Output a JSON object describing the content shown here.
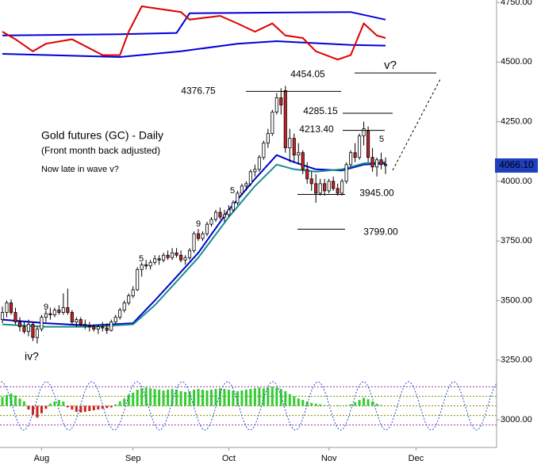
{
  "chart_data": {
    "type": "candlestick",
    "title": "Gold futures (GC) - Daily",
    "subtitle": "(Front month back adjusted)",
    "note": "Now late in wave v?",
    "x": [
      0,
      1,
      2,
      3,
      4,
      5,
      6,
      7,
      8,
      9,
      10,
      11,
      12,
      13,
      14,
      15,
      16,
      17,
      18,
      19,
      20,
      21,
      22,
      23,
      24,
      25,
      26,
      27,
      28,
      29,
      30,
      31,
      32,
      33,
      34,
      35,
      36,
      37,
      38,
      39,
      40,
      41,
      42,
      43,
      44,
      45,
      46,
      47,
      48,
      49,
      50,
      51,
      52,
      53,
      54,
      55,
      56,
      57,
      58,
      59,
      60,
      61,
      62,
      63,
      64,
      65,
      66,
      67,
      68,
      69,
      70,
      71,
      72,
      73,
      74,
      75,
      76,
      77,
      78,
      79,
      80,
      81,
      82,
      83,
      84,
      85,
      86,
      87,
      88
    ],
    "open": [
      3420,
      3450,
      3490,
      3450,
      3410,
      3390,
      3370,
      3400,
      3345,
      3380,
      3430,
      3445,
      3440,
      3460,
      3450,
      3470,
      3450,
      3410,
      3420,
      3400,
      3395,
      3390,
      3380,
      3390,
      3385,
      3375,
      3410,
      3430,
      3460,
      3490,
      3520,
      3545,
      3630,
      3650,
      3645,
      3660,
      3675,
      3670,
      3690,
      3680,
      3700,
      3690,
      3670,
      3680,
      3710,
      3780,
      3760,
      3780,
      3820,
      3840,
      3870,
      3850,
      3860,
      3880,
      3910,
      3950,
      3980,
      3990,
      4040,
      4050,
      4100,
      4160,
      4200,
      4290,
      4350,
      4380,
      4140,
      4180,
      4110,
      4120,
      4050,
      4010,
      3990,
      3950,
      3990,
      3960,
      4000,
      3970,
      3950,
      4000,
      4070,
      4120,
      4100,
      4190,
      4210,
      4100,
      4060,
      4090,
      4070
    ],
    "high": [
      3475,
      3500,
      3505,
      3470,
      3430,
      3410,
      3420,
      3410,
      3390,
      3440,
      3460,
      3470,
      3470,
      3480,
      3530,
      3550,
      3460,
      3430,
      3430,
      3420,
      3410,
      3400,
      3400,
      3410,
      3405,
      3420,
      3440,
      3470,
      3500,
      3530,
      3560,
      3640,
      3660,
      3670,
      3670,
      3690,
      3690,
      3700,
      3710,
      3720,
      3720,
      3710,
      3690,
      3720,
      3790,
      3800,
      3790,
      3830,
      3850,
      3880,
      3890,
      3880,
      3900,
      3920,
      3960,
      3990,
      4000,
      4050,
      4070,
      4110,
      4170,
      4220,
      4300,
      4370,
      4390,
      4400,
      4220,
      4200,
      4160,
      4130,
      4080,
      4040,
      4030,
      4010,
      4010,
      4010,
      4020,
      3990,
      4010,
      4080,
      4130,
      4160,
      4200,
      4250,
      4230,
      4140,
      4100,
      4120,
      4100
    ],
    "low": [
      3405,
      3430,
      3440,
      3400,
      3370,
      3360,
      3350,
      3330,
      3320,
      3370,
      3410,
      3420,
      3430,
      3440,
      3440,
      3440,
      3400,
      3390,
      3395,
      3380,
      3370,
      3370,
      3360,
      3370,
      3360,
      3370,
      3400,
      3420,
      3450,
      3480,
      3510,
      3540,
      3600,
      3630,
      3630,
      3650,
      3650,
      3660,
      3670,
      3670,
      3680,
      3660,
      3650,
      3670,
      3700,
      3750,
      3750,
      3770,
      3810,
      3830,
      3840,
      3830,
      3850,
      3870,
      3900,
      3940,
      3960,
      3980,
      4020,
      4040,
      4090,
      4140,
      4190,
      4280,
      4280,
      4120,
      4080,
      4080,
      4070,
      4030,
      3990,
      3960,
      3910,
      3940,
      3940,
      3950,
      3960,
      3940,
      3940,
      3990,
      4060,
      4080,
      4090,
      4150,
      4080,
      4040,
      4020,
      4050,
      4030
    ],
    "close": [
      3450,
      3490,
      3450,
      3410,
      3390,
      3370,
      3400,
      3345,
      3380,
      3430,
      3445,
      3440,
      3460,
      3450,
      3470,
      3450,
      3410,
      3420,
      3400,
      3395,
      3390,
      3380,
      3390,
      3385,
      3375,
      3410,
      3430,
      3460,
      3490,
      3520,
      3545,
      3630,
      3650,
      3645,
      3660,
      3675,
      3670,
      3690,
      3680,
      3700,
      3690,
      3670,
      3680,
      3710,
      3780,
      3760,
      3780,
      3820,
      3840,
      3870,
      3850,
      3860,
      3880,
      3910,
      3950,
      3980,
      3990,
      4040,
      4050,
      4100,
      4160,
      4200,
      4290,
      4350,
      4320,
      4140,
      4180,
      4110,
      4120,
      4050,
      4010,
      3990,
      3950,
      3990,
      3960,
      4000,
      3970,
      3950,
      4000,
      4070,
      4120,
      4100,
      4190,
      4220,
      4100,
      4060,
      4090,
      4070,
      4066.1
    ],
    "last_label": "4066.10",
    "up_color": "#ffffff",
    "down_color": "#cc2222",
    "xlim": [
      -0.55,
      113.5
    ],
    "ylim": [
      2884,
      4760
    ],
    "xticks": [
      {
        "value": 9,
        "label": "Aug"
      },
      {
        "value": 30,
        "label": "Sep"
      },
      {
        "value": 52,
        "label": "Oct"
      },
      {
        "value": 75,
        "label": "Nov"
      },
      {
        "value": 95,
        "label": "Dec"
      }
    ],
    "yticks": [
      {
        "value": 3000,
        "label": "3000.00"
      },
      {
        "value": 3250,
        "label": "3250.00"
      },
      {
        "value": 3500,
        "label": "3500.00"
      },
      {
        "value": 3750,
        "label": "3750.00"
      },
      {
        "value": 4000,
        "label": "4000.00"
      },
      {
        "value": 4250,
        "label": "4250.00"
      },
      {
        "value": 4500,
        "label": "4500.00"
      },
      {
        "value": 4750,
        "label": "4750.00"
      }
    ],
    "moving_averages": [
      {
        "color": "#0000cc",
        "x": [
          0,
          10,
          20,
          30,
          35,
          40,
          45,
          52,
          58,
          63,
          67,
          72,
          78,
          83,
          88
        ],
        "values": [
          3420,
          3405,
          3395,
          3405,
          3500,
          3600,
          3700,
          3880,
          4010,
          4110,
          4080,
          4050,
          4045,
          4070,
          4075
        ]
      },
      {
        "color": "#1a8c8c",
        "x": [
          0,
          10,
          20,
          30,
          35,
          40,
          45,
          52,
          58,
          63,
          67,
          72,
          78,
          83,
          88
        ],
        "values": [
          3400,
          3390,
          3390,
          3400,
          3480,
          3580,
          3680,
          3850,
          3980,
          4070,
          4050,
          4040,
          4050,
          4075,
          4080
        ]
      }
    ],
    "levels": [
      {
        "value": 4454.05,
        "label": "4454.05"
      },
      {
        "value": 4376.75,
        "label": "4376.75"
      },
      {
        "value": 4285.15,
        "label": "4285.15"
      },
      {
        "value": 4213.4,
        "label": "4213.40"
      },
      {
        "value": 3945.0,
        "label": "3945.00"
      },
      {
        "value": 3799.0,
        "label": "3799.00"
      }
    ],
    "wave_labels": [
      "iv?",
      "v?",
      "9",
      "5",
      "9",
      "5",
      "5"
    ],
    "wave_label_colors": [
      "#000000",
      "#000000",
      "#dd0000",
      "#888800",
      "#dd0000",
      "#888800",
      "#dd0000"
    ],
    "indicator": {
      "ylim": [
        0,
        100
      ],
      "series": [
        {
          "color": "#0000dd",
          "x": [
            0,
            27,
            40,
            43,
            80,
            88
          ],
          "values": [
            44,
            46,
            48,
            79,
            81,
            69
          ]
        },
        {
          "color": "#0000dd",
          "x": [
            0,
            27,
            41,
            54,
            63,
            80,
            88
          ],
          "values": [
            15,
            10,
            19,
            31,
            35,
            29,
            28
          ]
        },
        {
          "color": "#dd0000",
          "x": [
            0,
            3,
            7,
            10,
            16,
            23,
            27,
            29,
            32,
            41,
            43,
            50,
            54,
            58,
            62,
            65,
            69,
            72,
            77,
            80,
            83,
            86,
            88
          ],
          "values": [
            50,
            38,
            19,
            31,
            38,
            13,
            13,
            50,
            90,
            81,
            69,
            75,
            63,
            50,
            63,
            44,
            40,
            19,
            6,
            13,
            63,
            44,
            40
          ]
        }
      ]
    },
    "oscillator": {
      "ylim": [
        -35,
        35
      ],
      "levels": [
        26,
        13,
        0,
        -13,
        -26
      ],
      "level_colors": [
        "#993399",
        "#888800",
        "#888800",
        "#888800",
        "#993399"
      ],
      "up_color": "#33cc33",
      "down_color": "#cc2222",
      "values": [
        12,
        15,
        17,
        14,
        10,
        6,
        -5,
        -12,
        -16,
        -10,
        -4,
        3,
        6,
        8,
        6,
        -2,
        -5,
        -8,
        -9,
        -8,
        -7,
        -6,
        -5,
        -4,
        -3,
        -2,
        2,
        6,
        10,
        15,
        18,
        22,
        24,
        25,
        24,
        23,
        22,
        21,
        22,
        23,
        22,
        20,
        19,
        20,
        22,
        23,
        22,
        21,
        22,
        23,
        24,
        23,
        22,
        21,
        20,
        21,
        22,
        23,
        24,
        25,
        24,
        25,
        26,
        25,
        23,
        20,
        16,
        13,
        10,
        8,
        6,
        4,
        3,
        2,
        1,
        0,
        0,
        1,
        0,
        1,
        2,
        5,
        8,
        11,
        9,
        6,
        3,
        1,
        0
      ],
      "cycle": {
        "color": "#2255cc",
        "x": [
          -0.3,
          4.9,
          10.1,
          15.3,
          20.5,
          25.7,
          30.9,
          36.1,
          41.3,
          46.5,
          51.7,
          56.9,
          62.1,
          67.3,
          72.5,
          77.7,
          82.9,
          88.1,
          93.3,
          98.5,
          103.7,
          108.9,
          114.1
        ],
        "values": [
          33,
          -33,
          33,
          -33,
          33,
          -33,
          33,
          -33,
          33,
          -33,
          33,
          -33,
          33,
          -33,
          33,
          -33,
          33,
          -33,
          33,
          -33,
          33,
          -33,
          33
        ]
      }
    }
  }
}
